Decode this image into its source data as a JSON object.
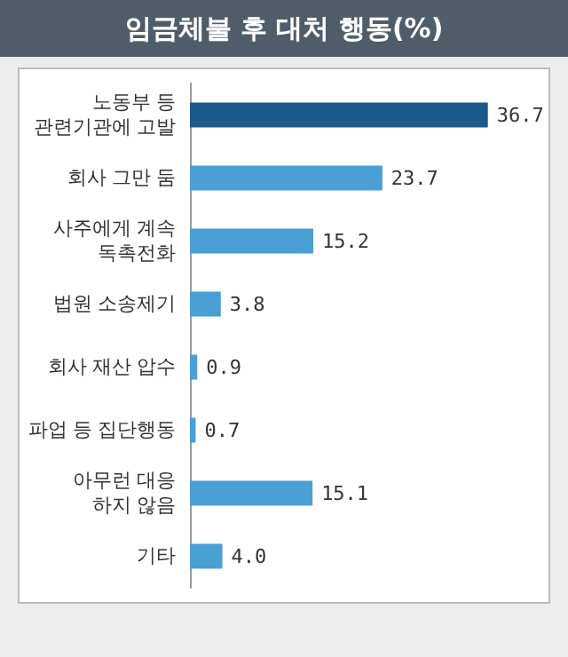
{
  "chart_data": {
    "type": "bar",
    "orientation": "horizontal",
    "title": "임금체불 후 대처 행동(%)",
    "categories": [
      "노동부 등\n관련기관에 고발",
      "회사 그만 둠",
      "사주에게 계속\n독촉전화",
      "법원 소송제기",
      "회사 재산 압수",
      "파업 등 집단행동",
      "아무런 대응\n하지 않음",
      "기타"
    ],
    "values": [
      36.7,
      23.7,
      15.2,
      3.8,
      0.9,
      0.7,
      15.1,
      4.0
    ],
    "colors": [
      "#1d5a8c",
      "#4a9fd5",
      "#4a9fd5",
      "#4a9fd5",
      "#4a9fd5",
      "#4a9fd5",
      "#4a9fd5",
      "#4a9fd5"
    ],
    "value_labels": [
      "36.7",
      "23.7",
      "15.2",
      "3.8",
      "0.9",
      "0.7",
      "15.1",
      "4.0"
    ]
  }
}
